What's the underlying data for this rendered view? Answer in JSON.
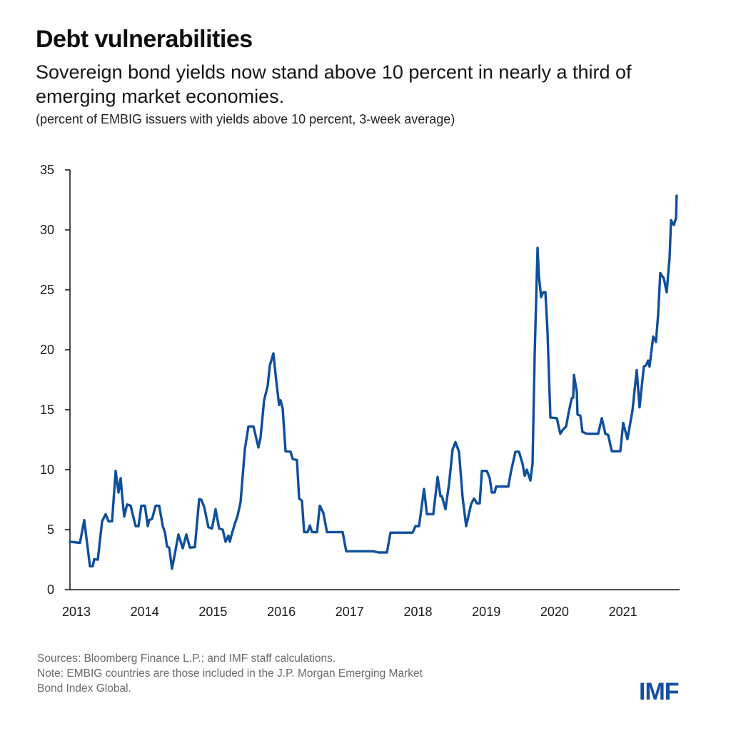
{
  "header": {
    "title": "Debt vulnerabilities",
    "subtitle": "Sovereign bond yields now stand above 10 percent in nearly a third of emerging market economies.",
    "units": "(percent of EMBIG issuers with yields above 10 percent, 3-week average)"
  },
  "footer": {
    "sources": "Sources: Bloomberg Finance L.P.; and IMF staff calculations.",
    "note_line1": "Note: EMBIG countries are those included in the J.P. Morgan Emerging Market",
    "note_line2": "Bond Index Global.",
    "logo": "IMF"
  },
  "colors": {
    "line": "#0f4f9c",
    "axis": "#111111",
    "logo": "#1450a0"
  },
  "chart_data": {
    "type": "line",
    "title": "Debt vulnerabilities",
    "subtitle": "Sovereign bond yields now stand above 10 percent in nearly a third of emerging market economies.",
    "xlabel": "",
    "ylabel": "percent of EMBIG issuers with yields above 10 percent, 3-week average",
    "xlim": [
      2013.0,
      2021.9
    ],
    "ylim": [
      0,
      35
    ],
    "yticks": [
      0,
      5,
      10,
      15,
      20,
      25,
      30,
      35
    ],
    "xticks": [
      "2013",
      "2014",
      "2015",
      "2016",
      "2017",
      "2018",
      "2019",
      "2020",
      "2021"
    ],
    "grid": false,
    "legend": "none",
    "series": [
      {
        "name": "Share of EMBIG issuers with yields above 10 percent",
        "x": [
          2013.0,
          2013.146,
          2013.209,
          2013.293,
          2013.334,
          2013.355,
          2013.408,
          2013.47,
          2013.522,
          2013.564,
          2013.617,
          2013.669,
          2013.711,
          2013.742,
          2013.763,
          2013.794,
          2013.836,
          2013.888,
          2013.909,
          2013.961,
          2014.003,
          2014.045,
          2014.097,
          2014.139,
          2014.16,
          2014.202,
          2014.254,
          2014.306,
          2014.358,
          2014.39,
          2014.421,
          2014.452,
          2014.494,
          2014.588,
          2014.651,
          2014.703,
          2014.755,
          2014.829,
          2014.891,
          2014.923,
          2014.964,
          2015.027,
          2015.079,
          2015.132,
          2015.184,
          2015.236,
          2015.278,
          2015.32,
          2015.341,
          2015.362,
          2015.414,
          2015.456,
          2015.497,
          2015.56,
          2015.612,
          2015.686,
          2015.759,
          2015.79,
          2015.842,
          2015.894,
          2015.926,
          2015.978,
          2016.02,
          2016.062,
          2016.083,
          2016.114,
          2016.156,
          2016.229,
          2016.26,
          2016.323,
          2016.354,
          2016.396,
          2016.427,
          2016.48,
          2016.511,
          2016.542,
          2016.616,
          2016.657,
          2016.71,
          2016.762,
          2016.992,
          2017.044,
          2017.305,
          2017.441,
          2017.514,
          2017.639,
          2017.692,
          2018.016,
          2018.058,
          2018.11,
          2018.183,
          2018.225,
          2018.319,
          2018.381,
          2018.423,
          2018.444,
          2018.496,
          2018.549,
          2018.601,
          2018.643,
          2018.695,
          2018.747,
          2018.799,
          2018.873,
          2018.915,
          2018.956,
          2018.998,
          2019.029,
          2019.102,
          2019.144,
          2019.175,
          2019.217,
          2019.238,
          2019.416,
          2019.458,
          2019.52,
          2019.573,
          2019.625,
          2019.656,
          2019.688,
          2019.74,
          2019.771,
          2019.802,
          2019.844,
          2019.865,
          2019.897,
          2019.928,
          2019.959,
          2019.99,
          2020.032,
          2020.126,
          2020.178,
          2020.21,
          2020.262,
          2020.304,
          2020.345,
          2020.366,
          2020.377,
          2020.419,
          2020.429,
          2020.471,
          2020.502,
          2020.565,
          2020.732,
          2020.785,
          2020.837,
          2020.878,
          2020.931,
          2021.056,
          2021.098,
          2021.139,
          2021.16,
          2021.202,
          2021.233,
          2021.296,
          2021.338,
          2021.4,
          2021.432,
          2021.463,
          2021.484,
          2021.537,
          2021.578,
          2021.61,
          2021.641,
          2021.693,
          2021.735,
          2021.777,
          2021.798,
          2021.84,
          2021.871,
          2021.881
        ],
        "values": [
          4.0,
          3.9,
          5.8,
          1.95,
          1.95,
          2.55,
          2.5,
          5.7,
          6.3,
          5.7,
          5.7,
          9.9,
          8.1,
          9.3,
          7.9,
          6.1,
          7.1,
          7.0,
          6.5,
          5.3,
          5.3,
          7.0,
          7.0,
          5.3,
          5.8,
          5.9,
          7.0,
          7.0,
          5.3,
          4.8,
          3.6,
          3.5,
          1.75,
          4.6,
          3.45,
          4.6,
          3.5,
          3.55,
          7.55,
          7.5,
          6.9,
          5.2,
          5.1,
          6.7,
          5.1,
          5.0,
          4.0,
          4.5,
          4.0,
          4.5,
          5.5,
          6.2,
          7.3,
          11.7,
          13.6,
          13.6,
          11.85,
          12.7,
          15.8,
          17.0,
          18.7,
          19.7,
          17.4,
          15.4,
          15.8,
          15.1,
          11.55,
          11.5,
          10.9,
          10.8,
          7.6,
          7.4,
          4.8,
          4.8,
          5.35,
          4.8,
          4.8,
          7.0,
          6.4,
          4.8,
          4.8,
          3.2,
          3.2,
          3.2,
          3.1,
          3.1,
          4.75,
          4.75,
          5.3,
          5.3,
          8.4,
          6.3,
          6.3,
          9.4,
          7.8,
          7.8,
          6.7,
          8.8,
          11.7,
          12.3,
          11.5,
          7.7,
          5.3,
          7.15,
          7.6,
          7.2,
          7.2,
          9.9,
          9.9,
          9.3,
          8.1,
          8.1,
          8.6,
          8.6,
          9.9,
          11.5,
          11.5,
          10.5,
          9.5,
          10.0,
          9.1,
          10.5,
          19.6,
          28.5,
          26.1,
          24.4,
          24.8,
          24.8,
          21.6,
          14.35,
          14.3,
          13.0,
          13.3,
          13.6,
          14.9,
          15.95,
          16.0,
          17.9,
          16.5,
          14.6,
          14.5,
          13.15,
          13.0,
          13.0,
          14.3,
          13.0,
          12.9,
          11.55,
          11.55,
          13.9,
          13.0,
          12.55,
          13.9,
          14.9,
          18.3,
          15.2,
          18.6,
          18.7,
          19.1,
          18.6,
          21.1,
          20.65,
          23.0,
          26.4,
          25.95,
          24.8,
          27.7,
          30.8,
          30.4,
          31.0,
          32.85
        ]
      }
    ]
  }
}
